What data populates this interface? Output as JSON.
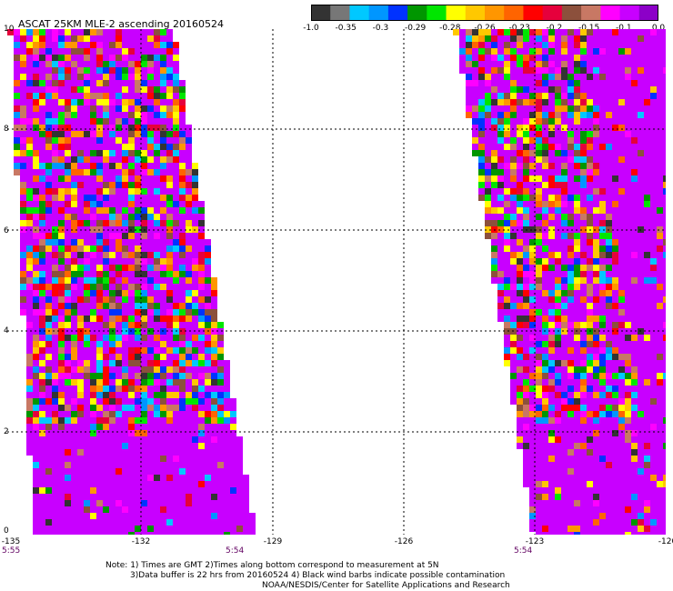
{
  "header": {
    "title": "ASCAT 25KM MLE-2 ascending",
    "date": "20160524"
  },
  "colorbar": {
    "colors": [
      "#333333",
      "#777777",
      "#00c8ff",
      "#0096ff",
      "#0032ff",
      "#009600",
      "#00e600",
      "#ffff00",
      "#ffc800",
      "#ff9600",
      "#ff6400",
      "#ff0000",
      "#e6003c",
      "#8c503c",
      "#c87864",
      "#ff00ff",
      "#c800ff",
      "#8c00c8"
    ],
    "labels": [
      "-1.0",
      "-0.35",
      "-0.3",
      "-0.29",
      "-0.28",
      "-0.26",
      "-0.23",
      "-0.2",
      "-0.15",
      "-0.1",
      "0.0"
    ]
  },
  "axes": {
    "y_ticks": [
      "10",
      "8",
      "6",
      "4",
      "2",
      "0"
    ],
    "x_ticks": [
      "-135",
      "-132",
      "-129",
      "-126",
      "-123",
      "-120"
    ],
    "times": [
      "5:55",
      "5:54",
      "5:54"
    ]
  },
  "notes": [
    "Note: 1) Times are GMT 2)Times along bottom correspond to measurement at 5N",
    "3)Data buffer is 22 hrs from 20160524 4) Black wind barbs indicate possible contamination",
    "NOAA/NESDIS/Center for Satellite Applications and Research"
  ]
}
